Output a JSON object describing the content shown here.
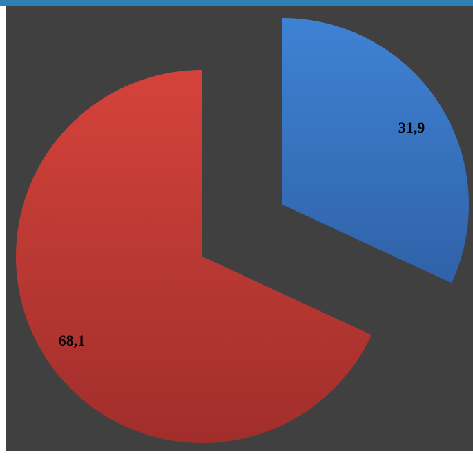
{
  "chart_data": {
    "type": "pie",
    "title": "",
    "categories": [
      "",
      ""
    ],
    "values": [
      31.9,
      68.1
    ],
    "labels": [
      "31,9",
      "68,1"
    ],
    "colors": [
      "#3a75c4",
      "#c0392b"
    ],
    "exploded": true,
    "legend": "none"
  },
  "colors": {
    "background": "#404040",
    "top_bar": "#2e7fb3"
  }
}
